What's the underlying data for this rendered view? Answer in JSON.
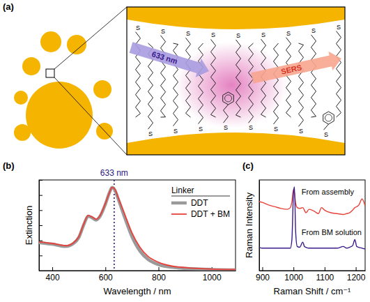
{
  "diagram": {
    "panel_label": "(a)",
    "excitation": "633 nm",
    "signal": "SERS",
    "atom": "S"
  },
  "chart_data": [
    {
      "panel_label": "(b)",
      "type": "line",
      "x_label": "Wavelength / nm",
      "y_label": "Extinction",
      "x": [
        350,
        400,
        450,
        480,
        500,
        520,
        535,
        550,
        565,
        580,
        600,
        615,
        625,
        635,
        650,
        670,
        700,
        730,
        760,
        800,
        850,
        900,
        1000,
        1090
      ],
      "series": [
        {
          "name": "DDT",
          "color": "#9a9a9a",
          "values": [
            0.37,
            0.35,
            0.32,
            0.36,
            0.44,
            0.62,
            0.72,
            0.7,
            0.67,
            0.72,
            0.88,
            1.03,
            1.1,
            1.07,
            0.93,
            0.73,
            0.45,
            0.26,
            0.15,
            0.08,
            0.045,
            0.03,
            0.015,
            0.01
          ]
        },
        {
          "name": "DDT + BM",
          "color": "#e8413a",
          "values": [
            0.38,
            0.36,
            0.33,
            0.37,
            0.45,
            0.63,
            0.73,
            0.71,
            0.68,
            0.73,
            0.89,
            1.03,
            1.1,
            1.08,
            0.95,
            0.77,
            0.5,
            0.31,
            0.19,
            0.11,
            0.06,
            0.04,
            0.02,
            0.015
          ]
        }
      ],
      "xlim": [
        350,
        1090
      ],
      "xticks": [
        400,
        600,
        800,
        1000
      ],
      "ylim": [
        0,
        1.2
      ],
      "yticks": [
        0,
        0.2,
        0.4,
        0.6,
        0.8,
        1,
        1.2
      ],
      "tick_labels": "x",
      "legend": "upper right",
      "legend_title": "Linker",
      "annotations": [
        {
          "x": 633,
          "label": "633 nm",
          "color": "#2b1a7a",
          "line_style": "dotted"
        }
      ]
    },
    {
      "panel_label": "(c)",
      "type": "line",
      "x_label": "Raman Shift / cm⁻¹",
      "y_label": "Raman Intensity",
      "x": [
        890,
        900,
        920,
        940,
        960,
        980,
        990,
        995,
        1000,
        1003,
        1007,
        1012,
        1020,
        1030,
        1035,
        1040,
        1050,
        1060,
        1070,
        1080,
        1090,
        1100,
        1120,
        1140,
        1160,
        1170,
        1180,
        1190,
        1197,
        1203,
        1210,
        1220,
        1230
      ],
      "series": [
        {
          "name": "From assembly",
          "color": "#e8413a",
          "values": [
            0.8,
            0.79,
            0.76,
            0.74,
            0.72,
            0.71,
            0.73,
            0.8,
            0.94,
            0.9,
            0.78,
            0.73,
            0.72,
            0.73,
            0.7,
            0.67,
            0.71,
            0.7,
            0.68,
            0.66,
            0.73,
            0.7,
            0.67,
            0.66,
            0.65,
            0.66,
            0.67,
            0.7,
            0.73,
            0.74,
            0.76,
            0.83,
            0.75
          ]
        },
        {
          "name": "From BM solution",
          "color": "#3b1a8c",
          "values": [
            0.27,
            0.26,
            0.26,
            0.26,
            0.26,
            0.26,
            0.26,
            0.36,
            0.9,
            0.97,
            0.45,
            0.28,
            0.27,
            0.33,
            0.28,
            0.27,
            0.26,
            0.26,
            0.26,
            0.26,
            0.26,
            0.26,
            0.26,
            0.26,
            0.28,
            0.26,
            0.27,
            0.29,
            0.36,
            0.28,
            0.27,
            0.26,
            0.25
          ]
        }
      ],
      "xlim": [
        890,
        1230
      ],
      "xticks": [
        900,
        1000,
        1100,
        1200
      ],
      "ylim": [
        0,
        1.05
      ],
      "tick_labels": "x"
    }
  ]
}
